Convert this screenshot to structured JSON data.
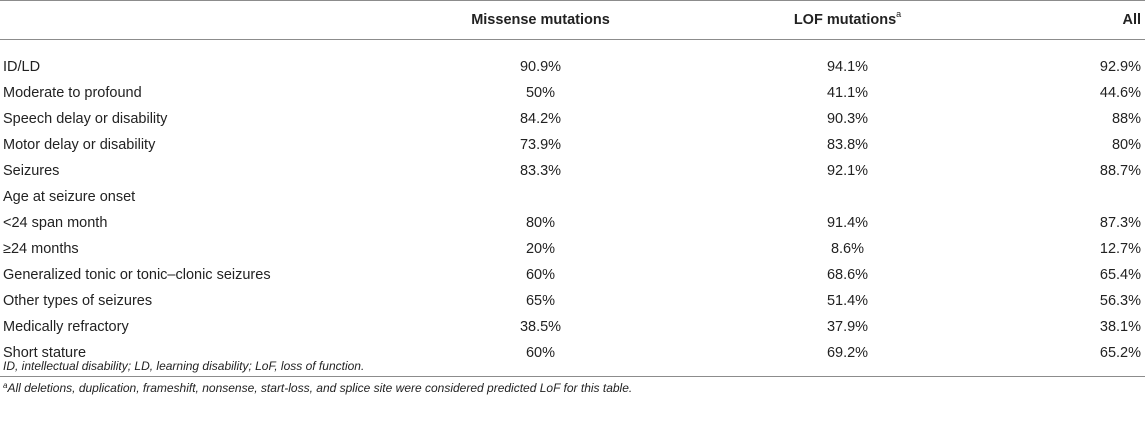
{
  "table": {
    "headers": {
      "label": "",
      "missense": "Missense mutations",
      "lof": "LOF mutations",
      "lof_sup": "a",
      "all": "All"
    },
    "rows": [
      {
        "label": "ID/LD",
        "missense": "90.9%",
        "lof": "94.1%",
        "all": "92.9%"
      },
      {
        "label": "Moderate to profound",
        "missense": "50%",
        "lof": "41.1%",
        "all": "44.6%"
      },
      {
        "label": "Speech delay or disability",
        "missense": "84.2%",
        "lof": "90.3%",
        "all": "88%"
      },
      {
        "label": "Motor delay or disability",
        "missense": "73.9%",
        "lof": "83.8%",
        "all": "80%"
      },
      {
        "label": "Seizures",
        "missense": "83.3%",
        "lof": "92.1%",
        "all": "88.7%"
      },
      {
        "label": "Age at seizure onset",
        "missense": "",
        "lof": "",
        "all": ""
      },
      {
        "label": "<24 span month",
        "missense": "80%",
        "lof": "91.4%",
        "all": "87.3%"
      },
      {
        "label": "≥24 months",
        "missense": "20%",
        "lof": "8.6%",
        "all": "12.7%"
      },
      {
        "label": "Generalized tonic or tonic–clonic seizures",
        "missense": "60%",
        "lof": "68.6%",
        "all": "65.4%"
      },
      {
        "label": "Other types of seizures",
        "missense": "65%",
        "lof": "51.4%",
        "all": "56.3%"
      },
      {
        "label": "Medically refractory",
        "missense": "38.5%",
        "lof": "37.9%",
        "all": "38.1%"
      },
      {
        "label": "Short stature",
        "missense": "60%",
        "lof": "69.2%",
        "all": "65.2%"
      }
    ]
  },
  "footnotes": {
    "abbreviations": "ID, intellectual disability; LD, learning disability; LoF, loss of function.",
    "note_marker": "a",
    "note_text": "All deletions, duplication, frameshift, nonsense, start-loss, and splice site were considered predicted LoF for this table."
  }
}
